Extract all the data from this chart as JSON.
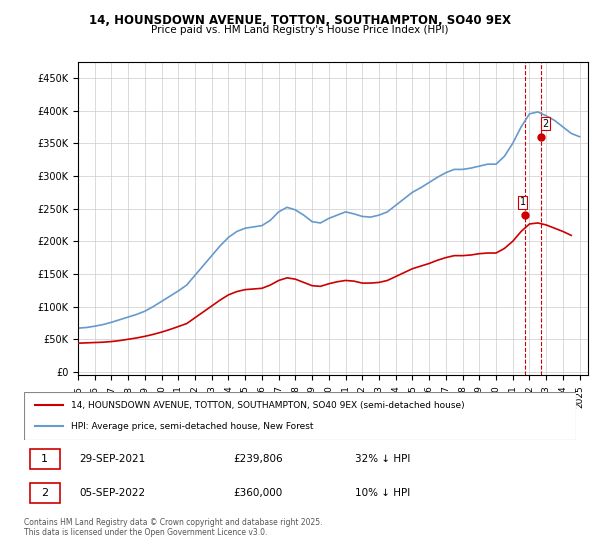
{
  "title1": "14, HOUNSDOWN AVENUE, TOTTON, SOUTHAMPTON, SO40 9EX",
  "title2": "Price paid vs. HM Land Registry's House Price Index (HPI)",
  "legend1": "14, HOUNSDOWN AVENUE, TOTTON, SOUTHAMPTON, SO40 9EX (semi-detached house)",
  "legend2": "HPI: Average price, semi-detached house, New Forest",
  "red_color": "#cc0000",
  "blue_color": "#6699cc",
  "footnote": "Contains HM Land Registry data © Crown copyright and database right 2025.\nThis data is licensed under the Open Government Licence v3.0.",
  "transactions": [
    {
      "num": 1,
      "date": "29-SEP-2021",
      "price": "£239,806",
      "hpi": "32% ↓ HPI"
    },
    {
      "num": 2,
      "date": "05-SEP-2022",
      "price": "£360,000",
      "hpi": "10% ↓ HPI"
    }
  ],
  "yticks": [
    0,
    50000,
    100000,
    150000,
    200000,
    250000,
    300000,
    350000,
    400000,
    450000
  ],
  "ylim": [
    -5000,
    475000
  ],
  "xlim_start": 1995.0,
  "xlim_end": 2025.5,
  "hpi_years": [
    1995,
    1995.5,
    1996,
    1996.5,
    1997,
    1997.5,
    1998,
    1998.5,
    1999,
    1999.5,
    2000,
    2000.5,
    2001,
    2001.5,
    2002,
    2002.5,
    2003,
    2003.5,
    2004,
    2004.5,
    2005,
    2005.5,
    2006,
    2006.5,
    2007,
    2007.5,
    2008,
    2008.5,
    2009,
    2009.5,
    2010,
    2010.5,
    2011,
    2011.5,
    2012,
    2012.5,
    2013,
    2013.5,
    2014,
    2014.5,
    2015,
    2015.5,
    2016,
    2016.5,
    2017,
    2017.5,
    2018,
    2018.5,
    2019,
    2019.5,
    2020,
    2020.5,
    2021,
    2021.5,
    2022,
    2022.5,
    2023,
    2023.5,
    2024,
    2024.5,
    2025
  ],
  "hpi_values": [
    67000,
    68000,
    70000,
    72500,
    76000,
    80000,
    84000,
    88000,
    93000,
    100000,
    108000,
    116000,
    124000,
    133000,
    148000,
    163000,
    178000,
    193000,
    206000,
    215000,
    220000,
    222000,
    224000,
    232000,
    245000,
    252000,
    248000,
    240000,
    230000,
    228000,
    235000,
    240000,
    245000,
    242000,
    238000,
    237000,
    240000,
    245000,
    255000,
    265000,
    275000,
    282000,
    290000,
    298000,
    305000,
    310000,
    310000,
    312000,
    315000,
    318000,
    318000,
    330000,
    350000,
    375000,
    395000,
    398000,
    392000,
    385000,
    375000,
    365000,
    360000
  ],
  "red_years": [
    1995,
    1995.5,
    1996,
    1996.5,
    1997,
    1997.5,
    1998,
    1998.5,
    1999,
    1999.5,
    2000,
    2000.5,
    2001,
    2001.5,
    2002,
    2002.5,
    2003,
    2003.5,
    2004,
    2004.5,
    2005,
    2005.5,
    2006,
    2006.5,
    2007,
    2007.5,
    2008,
    2008.5,
    2009,
    2009.5,
    2010,
    2010.5,
    2011,
    2011.5,
    2012,
    2012.5,
    2013,
    2013.5,
    2014,
    2014.5,
    2015,
    2015.5,
    2016,
    2016.5,
    2017,
    2017.5,
    2018,
    2018.5,
    2019,
    2019.5,
    2020,
    2020.5,
    2021,
    2021.5,
    2022,
    2022.5,
    2023,
    2023.5,
    2024,
    2024.5
  ],
  "red_values": [
    44000,
    44500,
    45000,
    45500,
    46500,
    48000,
    50000,
    52000,
    54500,
    57500,
    61000,
    65000,
    69500,
    74000,
    83000,
    92000,
    101000,
    110000,
    118000,
    123000,
    126000,
    127000,
    128000,
    133000,
    140000,
    144000,
    142000,
    137000,
    132000,
    131000,
    135000,
    138000,
    140000,
    139000,
    136000,
    136000,
    137000,
    140000,
    146000,
    152000,
    158000,
    162000,
    166000,
    171000,
    175000,
    178000,
    178000,
    179000,
    181000,
    182000,
    182000,
    189000,
    200000,
    215000,
    226500,
    228000,
    225000,
    220000,
    215000,
    209000
  ],
  "marker1_x": 2021.75,
  "marker1_y": 239806,
  "marker2_x": 2022.67,
  "marker2_y": 360000,
  "vline1_x": 2021.75,
  "vline2_x": 2022.67
}
